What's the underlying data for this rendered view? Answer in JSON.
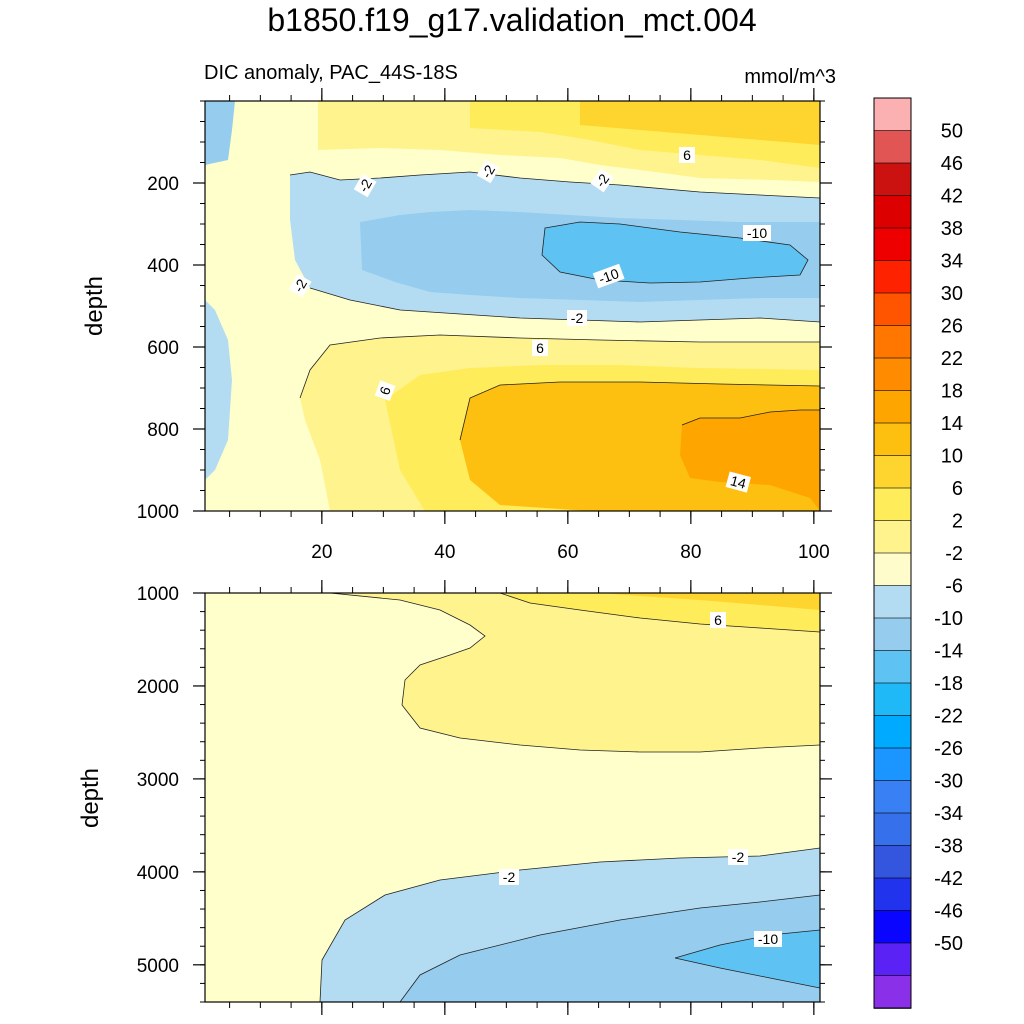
{
  "figure": {
    "title": "b1850.f19_g17.validation_mct.004",
    "subtitle": "DIC anomaly, PAC_44S-18S",
    "units": "mmol/m^3"
  },
  "chart_data": [
    {
      "type": "heatmap",
      "panel": "upper",
      "variable": "DIC anomaly",
      "region": "PAC_44S-18S",
      "xlabel": "",
      "ylabel": "depth",
      "xlim": [
        1,
        101
      ],
      "ylim": [
        1000,
        0
      ],
      "xticks": [
        "20",
        "40",
        "60",
        "80",
        "100"
      ],
      "yticks": [
        "200",
        "400",
        "600",
        "800",
        "1000"
      ],
      "contour_labels": [
        "6",
        "-2",
        "-2",
        "-2",
        "-10",
        "-10",
        "-2",
        "-2",
        "6",
        "6",
        "14"
      ],
      "summary": [
        {
          "x_range": [
            1,
            101
          ],
          "depth_range": [
            0,
            150
          ],
          "anomaly": "2 to 10"
        },
        {
          "x_range": [
            30,
            101
          ],
          "depth_range": [
            180,
            520
          ],
          "anomaly": "-2 to -14"
        },
        {
          "x_range": [
            42,
            101
          ],
          "depth_range": [
            700,
            1000
          ],
          "anomaly": "10 to 18"
        }
      ]
    },
    {
      "type": "heatmap",
      "panel": "lower",
      "variable": "DIC anomaly",
      "region": "PAC_44S-18S",
      "xlabel": "",
      "ylabel": "depth",
      "xlim": [
        1,
        101
      ],
      "ylim": [
        5400,
        1000
      ],
      "xticks": [],
      "yticks": [
        "1000",
        "2000",
        "3000",
        "4000",
        "5000"
      ],
      "contour_labels": [
        "6",
        "-2",
        "-2",
        "-10"
      ],
      "summary": [
        {
          "x_range": [
            35,
            101
          ],
          "depth_range": [
            1000,
            2700
          ],
          "anomaly": "2 to 10"
        },
        {
          "x_range": [
            20,
            101
          ],
          "depth_range": [
            3800,
            5400
          ],
          "anomaly": "-2 to -14"
        }
      ]
    }
  ],
  "colorbar": {
    "labels": [
      "50",
      "46",
      "42",
      "38",
      "34",
      "30",
      "26",
      "22",
      "18",
      "14",
      "10",
      "6",
      "2",
      "-2",
      "-6",
      "-10",
      "-14",
      "-18",
      "-22",
      "-26",
      "-30",
      "-34",
      "-38",
      "-42",
      "-46",
      "-50"
    ],
    "colors": [
      "#fbb1b1",
      "#e25555",
      "#cc1111",
      "#dd0000",
      "#ee0000",
      "#ff2200",
      "#ff5500",
      "#ff7700",
      "#ff8c00",
      "#ffa500",
      "#fdc010",
      "#fed52f",
      "#ffec5a",
      "#fff38e",
      "#fffccc",
      "#b3dcf3",
      "#96cdee",
      "#5ec3f3",
      "#1fb9f8",
      "#00aaff",
      "#1b95ff",
      "#3880f3",
      "#3670ea",
      "#3455dd",
      "#2233ee",
      "#0a05ff",
      "#5a22f5",
      "#8a30e8"
    ]
  }
}
